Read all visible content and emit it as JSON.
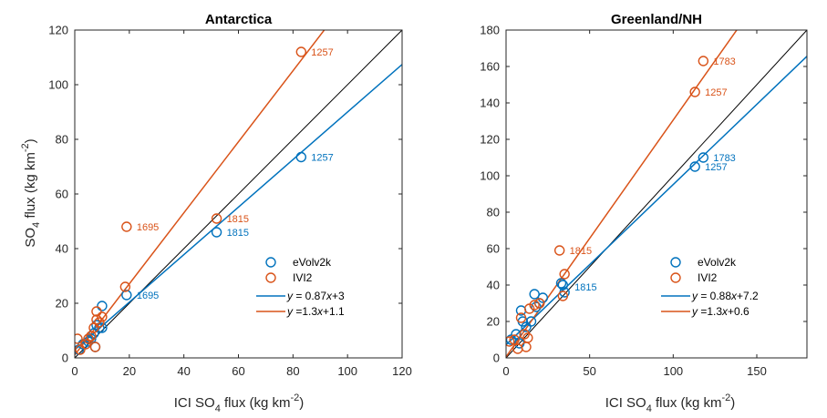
{
  "colors": {
    "evolv": "#0072BD",
    "ivi": "#D95319",
    "one_to_one": "#000000"
  },
  "ylabel_main": "SO",
  "ylabel_sub": "4",
  "ylabel_rest": " flux (kg km",
  "ylabel_sup": "-2",
  "ylabel_close": ")",
  "xlabel_main": "ICI SO",
  "xlabel_sub": "4",
  "xlabel_rest": " flux (kg km",
  "xlabel_sup": "-2",
  "xlabel_close": ")",
  "chart_data": [
    {
      "type": "scatter",
      "title": "Antarctica",
      "xlim": [
        0,
        120
      ],
      "ylim": [
        0,
        120
      ],
      "xticks": [
        0,
        20,
        40,
        60,
        80,
        100,
        120
      ],
      "yticks": [
        0,
        20,
        40,
        60,
        80,
        100,
        120
      ],
      "grid": false,
      "legend_position": "bottom-right",
      "series": [
        {
          "name": "eVolv2k",
          "color": "#0072BD",
          "points": [
            [
              1.5,
              3
            ],
            [
              3,
              5
            ],
            [
              5,
              6
            ],
            [
              6,
              7
            ],
            [
              7,
              9
            ],
            [
              7.5,
              4
            ],
            [
              8,
              12
            ],
            [
              9,
              11
            ],
            [
              10,
              19
            ],
            [
              10,
              11
            ],
            [
              19,
              23
            ],
            [
              52,
              46
            ],
            [
              83,
              73.5
            ]
          ]
        },
        {
          "name": "IVI2",
          "color": "#D95319",
          "points": [
            [
              1,
              7
            ],
            [
              2,
              3
            ],
            [
              4,
              5
            ],
            [
              5,
              7
            ],
            [
              6,
              8
            ],
            [
              7,
              11
            ],
            [
              7.5,
              4
            ],
            [
              8,
              17
            ],
            [
              8,
              14
            ],
            [
              9,
              13
            ],
            [
              10,
              15
            ],
            [
              18.5,
              26
            ],
            [
              19,
              48
            ],
            [
              52,
              51
            ],
            [
              83,
              112
            ]
          ]
        }
      ],
      "labels": [
        {
          "text": "1257",
          "x": 83,
          "y": 112,
          "series": "IVI2"
        },
        {
          "text": "1695",
          "x": 19,
          "y": 48,
          "series": "IVI2"
        },
        {
          "text": "1815",
          "x": 52,
          "y": 51,
          "series": "IVI2"
        },
        {
          "text": "1815",
          "x": 52,
          "y": 46,
          "series": "eVolv2k"
        },
        {
          "text": "1257",
          "x": 83,
          "y": 73.5,
          "series": "eVolv2k"
        },
        {
          "text": "1695",
          "x": 19,
          "y": 23,
          "series": "eVolv2k"
        }
      ],
      "fits": [
        {
          "series": "eVolv2k",
          "slope": 0.87,
          "intercept": 3,
          "label_y": "y",
          "label_eq": " = 0.87",
          "label_x": "x",
          "label_tail": "+3"
        },
        {
          "series": "IVI2",
          "slope": 1.3,
          "intercept": 1.1,
          "label_y": "y",
          "label_eq": " =1.3",
          "label_x": "x",
          "label_tail": "+1.1"
        }
      ]
    },
    {
      "type": "scatter",
      "title": "Greenland/NH",
      "xlim": [
        0,
        180
      ],
      "ylim": [
        0,
        180
      ],
      "xticks": [
        0,
        50,
        100,
        150
      ],
      "yticks": [
        0,
        20,
        40,
        60,
        80,
        100,
        120,
        140,
        160,
        180
      ],
      "grid": false,
      "legend_position": "bottom-right",
      "series": [
        {
          "name": "eVolv2k",
          "color": "#0072BD",
          "points": [
            [
              3,
              10
            ],
            [
              6,
              13
            ],
            [
              8,
              8
            ],
            [
              9,
              26
            ],
            [
              10,
              20
            ],
            [
              12,
              17
            ],
            [
              15,
              20
            ],
            [
              17,
              35
            ],
            [
              18,
              28
            ],
            [
              20,
              30
            ],
            [
              22,
              33
            ],
            [
              33,
              41
            ],
            [
              34,
              40
            ],
            [
              35,
              36
            ],
            [
              113,
              105
            ],
            [
              118,
              110
            ]
          ]
        },
        {
          "name": "IVI2",
          "color": "#D95319",
          "points": [
            [
              2,
              9
            ],
            [
              5,
              10
            ],
            [
              7,
              5
            ],
            [
              9,
              22
            ],
            [
              11,
              13
            ],
            [
              12,
              6
            ],
            [
              13,
              11
            ],
            [
              14,
              27
            ],
            [
              17,
              29
            ],
            [
              20,
              30
            ],
            [
              32,
              59
            ],
            [
              34,
              34
            ],
            [
              35,
              46
            ],
            [
              113,
              146
            ],
            [
              118,
              163
            ]
          ]
        }
      ],
      "labels": [
        {
          "text": "1783",
          "x": 118,
          "y": 163,
          "series": "IVI2"
        },
        {
          "text": "1257",
          "x": 113,
          "y": 146,
          "series": "IVI2"
        },
        {
          "text": "1783",
          "x": 118,
          "y": 110,
          "series": "eVolv2k"
        },
        {
          "text": "1257",
          "x": 113,
          "y": 105,
          "series": "eVolv2k"
        },
        {
          "text": "1815",
          "x": 32,
          "y": 59,
          "series": "IVI2"
        },
        {
          "text": "1815",
          "x": 35,
          "y": 39,
          "series": "eVolv2k"
        }
      ],
      "fits": [
        {
          "series": "eVolv2k",
          "slope": 0.88,
          "intercept": 7.2,
          "label_y": "y",
          "label_eq": " = 0.88",
          "label_x": "x",
          "label_tail": "+7.2"
        },
        {
          "series": "IVI2",
          "slope": 1.3,
          "intercept": 0.6,
          "label_y": "y",
          "label_eq": " =1.3",
          "label_x": "x",
          "label_tail": "+0.6"
        }
      ]
    }
  ]
}
